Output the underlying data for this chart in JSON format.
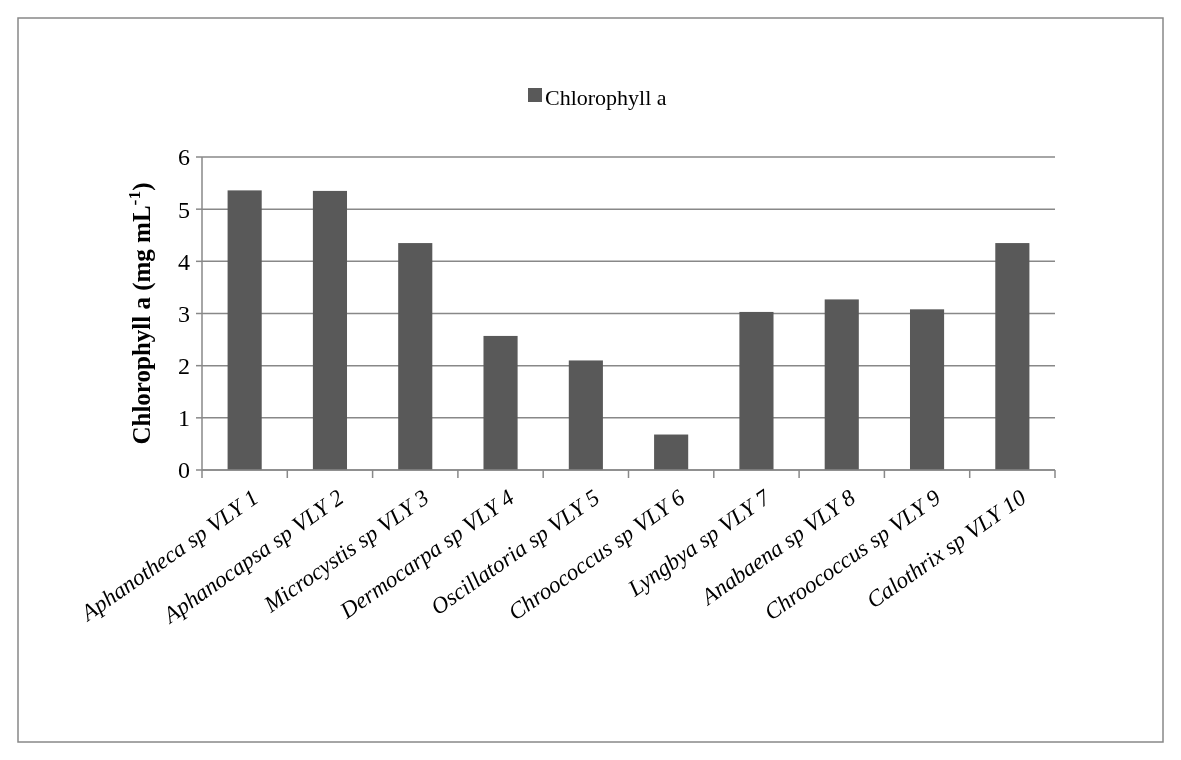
{
  "chart_data": {
    "type": "bar",
    "ylabel": "Chlorophyll a (mg mL$^{-1}$)",
    "categories": [
      "Aphanotheca sp VLY 1",
      "Aphanocapsa sp VLY 2",
      "Microcystis sp VLY 3",
      "Dermocarpa sp VLY 4",
      "Oscillatoria sp VLY 5",
      "Chroococcus sp VLY 6",
      "Lyngbya sp VLY 7",
      "Anabaena sp VLY 8",
      "Chroococcus sp VLY 9",
      "Calothrix sp VLY 10"
    ],
    "series": [
      {
        "name": "Chlorophyll a",
        "color": "#595959",
        "values": [
          5.36,
          5.35,
          4.35,
          2.57,
          2.1,
          0.68,
          3.03,
          3.27,
          3.08,
          4.35
        ]
      }
    ],
    "ylim": [
      0,
      6
    ],
    "yticks": [
      0,
      1,
      2,
      3,
      4,
      5,
      6
    ],
    "grid": "y",
    "legend": "top"
  }
}
